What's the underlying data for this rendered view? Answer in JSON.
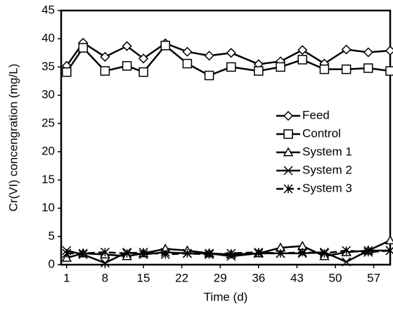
{
  "chart_data": {
    "type": "line",
    "x_label": "Time (d)",
    "y_label": "Cr(VI) concengration (mg/L)",
    "x": [
      1,
      4,
      8,
      12,
      15,
      19,
      23,
      27,
      31,
      36,
      40,
      44,
      48,
      52,
      56,
      60
    ],
    "series": [
      {
        "name": "Feed",
        "color": "#000000",
        "marker": "diamond",
        "line_style": "solid",
        "values": [
          35.2,
          39.3,
          36.8,
          38.7,
          36.5,
          39.2,
          37.7,
          37.0,
          37.5,
          35.5,
          36.0,
          38.0,
          35.6,
          38.1,
          37.6,
          37.9
        ]
      },
      {
        "name": "Control",
        "color": "#000000",
        "marker": "square",
        "line_style": "solid",
        "values": [
          34.1,
          38.4,
          34.3,
          35.2,
          34.1,
          38.8,
          35.6,
          33.5,
          35.0,
          34.3,
          35.0,
          36.3,
          34.6,
          34.6,
          34.8,
          34.3
        ]
      },
      {
        "name": "System 1",
        "color": "#000000",
        "marker": "triangle",
        "line_style": "solid",
        "values": [
          1.2,
          2.0,
          1.8,
          1.5,
          2.0,
          2.8,
          2.5,
          2.0,
          1.8,
          2.0,
          3.0,
          3.3,
          1.5,
          2.2,
          2.5,
          4.3
        ]
      },
      {
        "name": "System 2",
        "color": "#000000",
        "marker": "x",
        "line_style": "solid",
        "values": [
          2.5,
          1.8,
          0.3,
          2.2,
          1.8,
          2.2,
          2.0,
          2.0,
          1.5,
          2.0,
          2.0,
          2.0,
          2.2,
          0.5,
          2.5,
          2.5
        ]
      },
      {
        "name": "System 3",
        "color": "#000000",
        "marker": "asterisk",
        "line_style": "dashed",
        "values": [
          2.0,
          2.0,
          2.2,
          2.0,
          2.2,
          1.8,
          2.0,
          1.8,
          2.0,
          2.2,
          2.0,
          2.2,
          2.0,
          2.5,
          2.2,
          2.5
        ]
      }
    ],
    "xlim": [
      0,
      60
    ],
    "xticks": [
      1,
      8,
      15,
      22,
      29,
      36,
      43,
      50,
      57
    ],
    "ylim": [
      0,
      45
    ],
    "yticks": [
      0,
      5,
      10,
      15,
      20,
      25,
      30,
      35,
      40,
      45
    ],
    "grid": false,
    "legend": "right"
  }
}
